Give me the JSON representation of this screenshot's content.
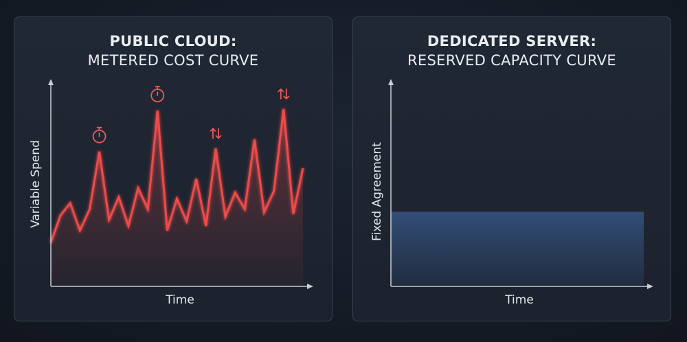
{
  "chart_data": [
    {
      "type": "line",
      "title_bold": "PUBLIC CLOUD:",
      "title_sub": "METERED COST CURVE",
      "xlabel": "Time",
      "ylabel": "Variable Spend",
      "x": [
        0,
        1,
        2,
        3,
        4,
        5,
        6,
        7,
        8,
        9,
        10,
        11,
        12,
        13,
        14,
        15,
        16,
        17,
        18,
        19,
        20,
        21,
        22,
        23,
        24,
        25,
        26
      ],
      "values": [
        0.13,
        0.31,
        0.39,
        0.21,
        0.35,
        0.73,
        0.28,
        0.43,
        0.24,
        0.49,
        0.35,
        1.0,
        0.21,
        0.42,
        0.27,
        0.55,
        0.24,
        0.75,
        0.3,
        0.46,
        0.35,
        0.81,
        0.33,
        0.47,
        1.01,
        0.32,
        0.62
      ],
      "color": "#ee4c48",
      "annotations": [
        {
          "icon": "stopwatch-icon",
          "at_index": 5
        },
        {
          "icon": "stopwatch-icon",
          "at_index": 11
        },
        {
          "icon": "up-down-arrows-icon",
          "at_index": 17
        },
        {
          "icon": "up-down-arrows-icon",
          "at_index": 24
        }
      ]
    },
    {
      "type": "area",
      "title_bold": "DEDICATED SERVER:",
      "title_sub": "RESERVED CAPACITY CURVE",
      "xlabel": "Time",
      "ylabel": "Fixed Agreement",
      "x": [
        0,
        1
      ],
      "values": [
        0.36,
        0.36
      ],
      "color": "#5b93e6"
    }
  ]
}
